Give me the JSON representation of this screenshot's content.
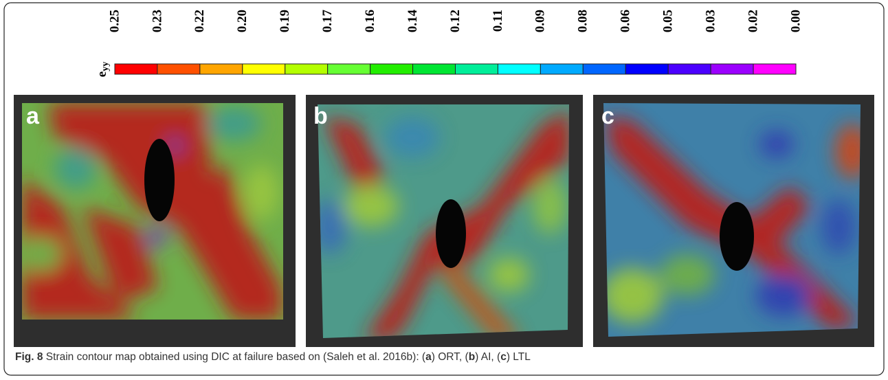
{
  "colorbar": {
    "symbol": "e",
    "subscript": "yy",
    "labels": [
      "0.25",
      "0.23",
      "0.22",
      "0.20",
      "0.19",
      "0.17",
      "0.16",
      "0.14",
      "0.12",
      "0.11",
      "0.09",
      "0.08",
      "0.06",
      "0.05",
      "0.03",
      "0.02",
      "0.00"
    ],
    "colors": [
      "#ff0000",
      "#ff5000",
      "#ffa500",
      "#ffff00",
      "#b4ff00",
      "#66ff33",
      "#22ee00",
      "#00e633",
      "#00ee99",
      "#00ffff",
      "#00aaff",
      "#0066ff",
      "#0000ff",
      "#4b00ff",
      "#9b00ff",
      "#ff00ff"
    ]
  },
  "panels": [
    {
      "letter": "a"
    },
    {
      "letter": "b"
    },
    {
      "letter": "c"
    }
  ],
  "caption": {
    "label": "Fig. 8",
    "parts": [
      "Strain contour map obtained using DIC at failure based on (Saleh et al. 2016b): (",
      "a",
      ") ORT, (",
      "b",
      ") AI, (",
      "c",
      ") LTL"
    ]
  }
}
